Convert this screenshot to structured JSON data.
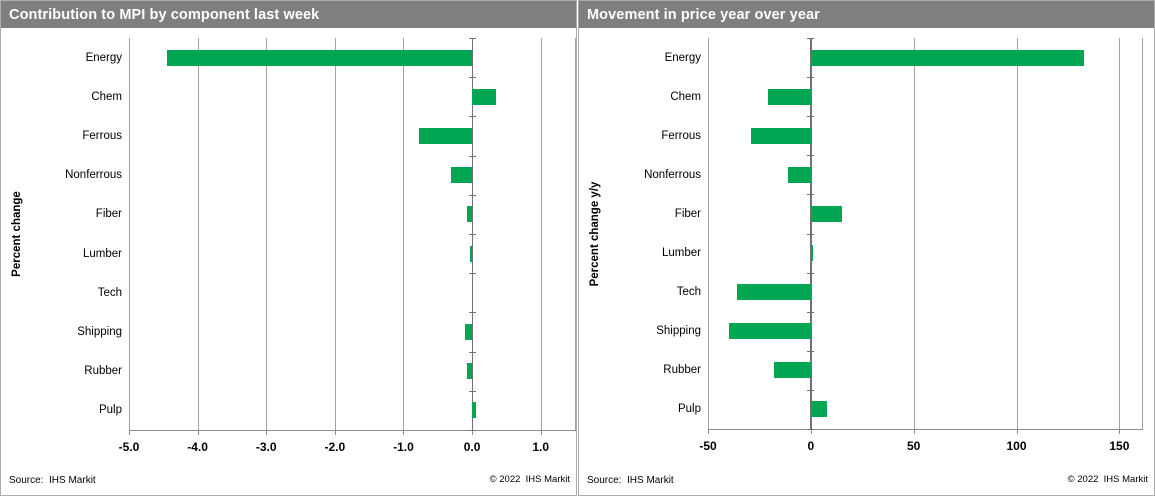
{
  "accent_colors": {
    "bar_green": "#00A651",
    "titlebar_gray": "#7f7f7f"
  },
  "chart_data": [
    {
      "type": "bar",
      "orientation": "horizontal",
      "title": "Contribution to MPI by component last week",
      "xlabel": "",
      "ylabel": "Percent change",
      "categories": [
        "Energy",
        "Chem",
        "Ferrous",
        "Nonferrous",
        "Fiber",
        "Lumber",
        "Tech",
        "Shipping",
        "Rubber",
        "Pulp"
      ],
      "values": [
        -4.45,
        0.35,
        -0.77,
        -0.3,
        -0.07,
        -0.03,
        0.0,
        -0.1,
        -0.08,
        0.06
      ],
      "xlim": [
        -5.0,
        1.5
      ],
      "xticks": [
        -5.0,
        -4.0,
        -3.0,
        -2.0,
        -1.0,
        0.0,
        1.0
      ],
      "xtick_labels": [
        "-5.0",
        "-4.0",
        "-3.0",
        "-2.0",
        "-1.0",
        "0.0",
        "1.0"
      ],
      "grid": true,
      "legend": "none",
      "bar_color": "#00A651",
      "source": "Source:  IHS Markit",
      "copyright": "© 2022  IHS Markit"
    },
    {
      "type": "bar",
      "orientation": "horizontal",
      "title": "Movement in price year over year",
      "xlabel": "",
      "ylabel": "Percent change y/y",
      "categories": [
        "Energy",
        "Chem",
        "Ferrous",
        "Nonferrous",
        "Fiber",
        "Lumber",
        "Tech",
        "Shipping",
        "Rubber",
        "Pulp"
      ],
      "values": [
        133,
        -21,
        -29,
        -11,
        15,
        1.2,
        -36,
        -40,
        -18,
        8
      ],
      "xlim": [
        -50,
        161
      ],
      "xticks": [
        -50,
        0,
        50,
        100,
        150
      ],
      "xtick_labels": [
        "-50",
        "0",
        "50",
        "100",
        "150"
      ],
      "grid": true,
      "legend": "none",
      "bar_color": "#00A651",
      "source": "Source:  IHS Markit",
      "copyright": "© 2022  IHS Markit"
    }
  ]
}
